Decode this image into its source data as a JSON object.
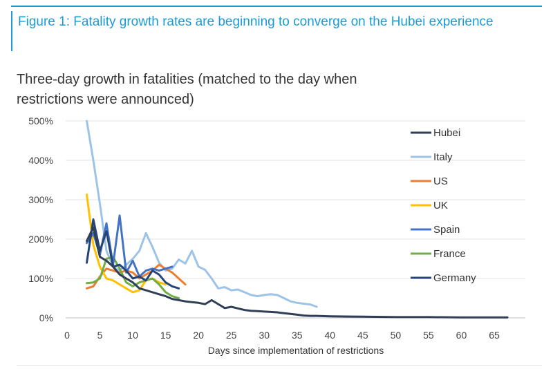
{
  "figure_title": "Figure 1: Fatality growth rates are beginning to converge on the Hubei experience",
  "chart_subtitle": "Three-day growth in fatalities (matched to the day when restrictions were announced)",
  "colors": {
    "accent": "#1a9bd7",
    "Hubei": "#2e3f56",
    "Italy": "#9dc3e6",
    "US": "#ed7d31",
    "UK": "#ffc000",
    "Spain": "#4472c4",
    "France": "#70ad47",
    "Germany": "#264478"
  },
  "chart_data": {
    "type": "line",
    "title": "",
    "xlabel": "Days since implementation of restrictions",
    "ylabel": "",
    "xlim": [
      -2,
      69
    ],
    "ylim": [
      0,
      500
    ],
    "x_ticks": [
      0,
      5,
      10,
      15,
      20,
      25,
      30,
      35,
      40,
      45,
      50,
      55,
      60,
      65
    ],
    "x_tick_labels": [
      "0",
      "5",
      "10",
      "15",
      "20",
      "25",
      "30",
      "35",
      "40",
      "45",
      "50",
      "55",
      "60",
      "65"
    ],
    "y_ticks": [
      0,
      100,
      200,
      300,
      400,
      500
    ],
    "y_tick_labels": [
      "0%",
      "100%",
      "200%",
      "300%",
      "400%",
      "500%"
    ],
    "grid": "horizontal",
    "legend_position": "right",
    "series": [
      {
        "name": "Hubei",
        "color": "#2e3f56",
        "points": [
          [
            3,
            195
          ],
          [
            4,
            230
          ],
          [
            5,
            155
          ],
          [
            6,
            145
          ],
          [
            7,
            130
          ],
          [
            8,
            110
          ],
          [
            9,
            100
          ],
          [
            10,
            90
          ],
          [
            11,
            75
          ],
          [
            12,
            70
          ],
          [
            13,
            65
          ],
          [
            14,
            60
          ],
          [
            15,
            55
          ],
          [
            16,
            48
          ],
          [
            17,
            45
          ],
          [
            18,
            42
          ],
          [
            19,
            40
          ],
          [
            20,
            38
          ],
          [
            21,
            35
          ],
          [
            22,
            45
          ],
          [
            23,
            35
          ],
          [
            24,
            25
          ],
          [
            25,
            28
          ],
          [
            26,
            24
          ],
          [
            27,
            20
          ],
          [
            28,
            18
          ],
          [
            29,
            17
          ],
          [
            30,
            16
          ],
          [
            31,
            15
          ],
          [
            32,
            14
          ],
          [
            33,
            12
          ],
          [
            34,
            10
          ],
          [
            35,
            8
          ],
          [
            36,
            6
          ],
          [
            37,
            5
          ],
          [
            38,
            5
          ],
          [
            40,
            4
          ],
          [
            45,
            3
          ],
          [
            50,
            2
          ],
          [
            55,
            2
          ],
          [
            60,
            1
          ],
          [
            65,
            1
          ],
          [
            67,
            1
          ]
        ]
      },
      {
        "name": "Italy",
        "color": "#9dc3e6",
        "points": [
          [
            3,
            500
          ],
          [
            4,
            400
          ],
          [
            5,
            290
          ],
          [
            6,
            170
          ],
          [
            7,
            130
          ],
          [
            8,
            120
          ],
          [
            9,
            135
          ],
          [
            10,
            150
          ],
          [
            11,
            170
          ],
          [
            12,
            215
          ],
          [
            13,
            180
          ],
          [
            14,
            140
          ],
          [
            15,
            120
          ],
          [
            16,
            125
          ],
          [
            17,
            148
          ],
          [
            18,
            138
          ],
          [
            19,
            170
          ],
          [
            20,
            130
          ],
          [
            21,
            122
          ],
          [
            22,
            100
          ],
          [
            23,
            75
          ],
          [
            24,
            78
          ],
          [
            25,
            70
          ],
          [
            26,
            72
          ],
          [
            27,
            65
          ],
          [
            28,
            58
          ],
          [
            29,
            55
          ],
          [
            30,
            58
          ],
          [
            31,
            60
          ],
          [
            32,
            58
          ],
          [
            33,
            50
          ],
          [
            34,
            42
          ],
          [
            35,
            38
          ],
          [
            36,
            36
          ],
          [
            37,
            34
          ],
          [
            38,
            28
          ]
        ]
      },
      {
        "name": "US",
        "color": "#ed7d31",
        "points": [
          [
            3,
            75
          ],
          [
            4,
            80
          ],
          [
            5,
            105
          ],
          [
            6,
            125
          ],
          [
            7,
            120
          ],
          [
            8,
            115
          ],
          [
            9,
            120
          ],
          [
            10,
            115
          ],
          [
            11,
            100
          ],
          [
            12,
            110
          ],
          [
            13,
            120
          ],
          [
            14,
            135
          ],
          [
            15,
            125
          ],
          [
            16,
            115
          ],
          [
            17,
            100
          ],
          [
            18,
            85
          ]
        ]
      },
      {
        "name": "UK",
        "color": "#ffc000",
        "points": [
          [
            3,
            313
          ],
          [
            4,
            185
          ],
          [
            5,
            130
          ],
          [
            6,
            100
          ],
          [
            7,
            95
          ],
          [
            8,
            85
          ],
          [
            9,
            75
          ],
          [
            10,
            65
          ],
          [
            11,
            70
          ],
          [
            12,
            95
          ],
          [
            13,
            100
          ],
          [
            14,
            90
          ],
          [
            15,
            85
          ]
        ]
      },
      {
        "name": "Spain",
        "color": "#4472c4",
        "points": [
          [
            3,
            190
          ],
          [
            4,
            215
          ],
          [
            5,
            160
          ],
          [
            6,
            240
          ],
          [
            7,
            135
          ],
          [
            8,
            260
          ],
          [
            9,
            115
          ],
          [
            10,
            145
          ],
          [
            11,
            105
          ],
          [
            12,
            120
          ],
          [
            13,
            125
          ],
          [
            14,
            120
          ],
          [
            15,
            125
          ],
          [
            16,
            130
          ]
        ]
      },
      {
        "name": "France",
        "color": "#70ad47",
        "points": [
          [
            3,
            88
          ],
          [
            4,
            90
          ],
          [
            5,
            100
          ],
          [
            6,
            150
          ],
          [
            7,
            155
          ],
          [
            8,
            125
          ],
          [
            9,
            90
          ],
          [
            10,
            80
          ],
          [
            11,
            90
          ],
          [
            12,
            95
          ],
          [
            13,
            100
          ],
          [
            14,
            85
          ],
          [
            15,
            65
          ],
          [
            16,
            55
          ],
          [
            17,
            50
          ]
        ]
      },
      {
        "name": "Germany",
        "color": "#264478",
        "points": [
          [
            3,
            140
          ],
          [
            4,
            250
          ],
          [
            5,
            170
          ],
          [
            6,
            220
          ],
          [
            7,
            130
          ],
          [
            8,
            135
          ],
          [
            9,
            120
          ],
          [
            10,
            100
          ],
          [
            11,
            105
          ],
          [
            12,
            95
          ],
          [
            13,
            120
          ],
          [
            14,
            110
          ],
          [
            15,
            90
          ],
          [
            16,
            80
          ],
          [
            17,
            75
          ]
        ]
      }
    ]
  }
}
